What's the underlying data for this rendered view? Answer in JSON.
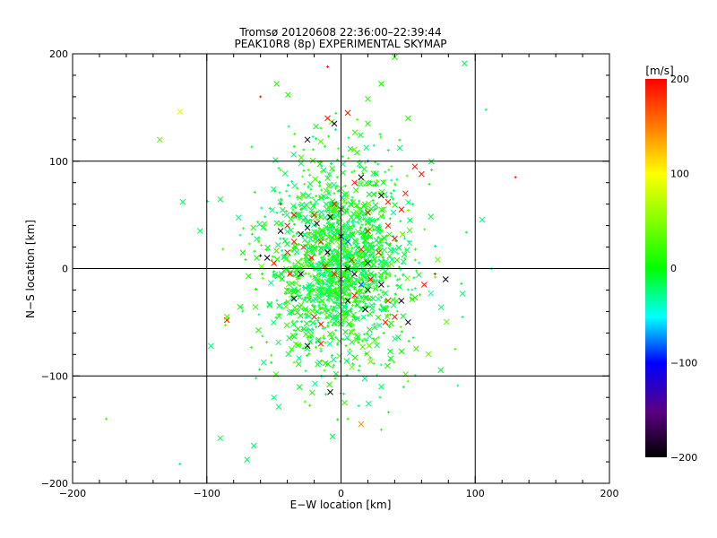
{
  "chart_data": {
    "type": "scatter",
    "title": "Tromsø 20120608 22:36:00–22:39:44",
    "subtitle": "PEAK10R8 (8p) EXPERIMENTAL SKYMAP",
    "xlabel": "E−W location [km]",
    "ylabel": "N−S location [km]",
    "xlim": [
      -200,
      200
    ],
    "ylim": [
      -200,
      200
    ],
    "xticks": [
      "−200",
      "−100",
      "0",
      "100",
      "200"
    ],
    "yticks": [
      "−200",
      "−100",
      "0",
      "100",
      "200"
    ],
    "grid": true,
    "colorbar": {
      "label": "[m/s]",
      "range": [
        -200,
        200
      ],
      "ticks": [
        "200",
        "100",
        "0",
        "−100",
        "−200"
      ]
    },
    "points": [
      {
        "x": -120,
        "y": 146,
        "v": 90,
        "m": "x"
      },
      {
        "x": -135,
        "y": 120,
        "v": 35,
        "m": "x"
      },
      {
        "x": 130,
        "y": 85,
        "v": 190,
        "m": "+"
      },
      {
        "x": 92,
        "y": 191,
        "v": -20,
        "m": "x"
      },
      {
        "x": 40,
        "y": 197,
        "v": 10,
        "m": "x"
      },
      {
        "x": -10,
        "y": 188,
        "v": 190,
        "m": "+"
      },
      {
        "x": -48,
        "y": 172,
        "v": 10,
        "m": "x"
      },
      {
        "x": -60,
        "y": 160,
        "v": 190,
        "m": "+"
      },
      {
        "x": 20,
        "y": 158,
        "v": 10,
        "m": "x"
      },
      {
        "x": 30,
        "y": 172,
        "v": 10,
        "m": "x"
      },
      {
        "x": -10,
        "y": 140,
        "v": 190,
        "m": "x"
      },
      {
        "x": -5,
        "y": 135,
        "v": -190,
        "m": "x"
      },
      {
        "x": 5,
        "y": 145,
        "v": 190,
        "m": "x"
      },
      {
        "x": 20,
        "y": 135,
        "v": 10,
        "m": "x"
      },
      {
        "x": -25,
        "y": 120,
        "v": -190,
        "m": "x"
      },
      {
        "x": 50,
        "y": 140,
        "v": 10,
        "m": "x"
      },
      {
        "x": 55,
        "y": 95,
        "v": 190,
        "m": "x"
      },
      {
        "x": 60,
        "y": 88,
        "v": 190,
        "m": "x"
      },
      {
        "x": 15,
        "y": 85,
        "v": -190,
        "m": "x"
      },
      {
        "x": 30,
        "y": 68,
        "v": -190,
        "m": "x"
      },
      {
        "x": 35,
        "y": 62,
        "v": 190,
        "m": "x"
      },
      {
        "x": 20,
        "y": 52,
        "v": 190,
        "m": "x"
      },
      {
        "x": 0,
        "y": 55,
        "v": 190,
        "m": "x"
      },
      {
        "x": -20,
        "y": 50,
        "v": 190,
        "m": "x"
      },
      {
        "x": -35,
        "y": 50,
        "v": 190,
        "m": "x"
      },
      {
        "x": -40,
        "y": 40,
        "v": 190,
        "m": "x"
      },
      {
        "x": -25,
        "y": 38,
        "v": -190,
        "m": "x"
      },
      {
        "x": -18,
        "y": 42,
        "v": -190,
        "m": "x"
      },
      {
        "x": -30,
        "y": 32,
        "v": -190,
        "m": "x"
      },
      {
        "x": -45,
        "y": 35,
        "v": -190,
        "m": "x"
      },
      {
        "x": -35,
        "y": 25,
        "v": 190,
        "m": "x"
      },
      {
        "x": -28,
        "y": 20,
        "v": 190,
        "m": "x"
      },
      {
        "x": -15,
        "y": 25,
        "v": 190,
        "m": "x"
      },
      {
        "x": -10,
        "y": 15,
        "v": -190,
        "m": "x"
      },
      {
        "x": -22,
        "y": 10,
        "v": 190,
        "m": "x"
      },
      {
        "x": -40,
        "y": 15,
        "v": 190,
        "m": "x"
      },
      {
        "x": -50,
        "y": 5,
        "v": 190,
        "m": "x"
      },
      {
        "x": -55,
        "y": 10,
        "v": -190,
        "m": "x"
      },
      {
        "x": -38,
        "y": -5,
        "v": 190,
        "m": "x"
      },
      {
        "x": -12,
        "y": 2,
        "v": 190,
        "m": "x"
      },
      {
        "x": -5,
        "y": -5,
        "v": 190,
        "m": "x"
      },
      {
        "x": 5,
        "y": 0,
        "v": -190,
        "m": "x"
      },
      {
        "x": 8,
        "y": 8,
        "v": 190,
        "m": "x"
      },
      {
        "x": 15,
        "y": 18,
        "v": 190,
        "m": "x"
      },
      {
        "x": 28,
        "y": 15,
        "v": 190,
        "m": "x"
      },
      {
        "x": 20,
        "y": 35,
        "v": 190,
        "m": "x"
      },
      {
        "x": 35,
        "y": 40,
        "v": 190,
        "m": "x"
      },
      {
        "x": 40,
        "y": 28,
        "v": 190,
        "m": "x"
      },
      {
        "x": 22,
        "y": -10,
        "v": 190,
        "m": "x"
      },
      {
        "x": 30,
        "y": -15,
        "v": -190,
        "m": "x"
      },
      {
        "x": 20,
        "y": -20,
        "v": -190,
        "m": "x"
      },
      {
        "x": 10,
        "y": -25,
        "v": 190,
        "m": "x"
      },
      {
        "x": 35,
        "y": -30,
        "v": 190,
        "m": "x"
      },
      {
        "x": 45,
        "y": -30,
        "v": -190,
        "m": "x"
      },
      {
        "x": 40,
        "y": -45,
        "v": 190,
        "m": "x"
      },
      {
        "x": 33,
        "y": -50,
        "v": 190,
        "m": "x"
      },
      {
        "x": 50,
        "y": -50,
        "v": -190,
        "m": "x"
      },
      {
        "x": 62,
        "y": -15,
        "v": 190,
        "m": "x"
      },
      {
        "x": 78,
        "y": -10,
        "v": -190,
        "m": "x"
      },
      {
        "x": 70,
        "y": -5,
        "v": 190,
        "m": "+"
      },
      {
        "x": 18,
        "y": -38,
        "v": -190,
        "m": "x"
      },
      {
        "x": 5,
        "y": -30,
        "v": -190,
        "m": "x"
      },
      {
        "x": -25,
        "y": -72,
        "v": -190,
        "m": "x"
      },
      {
        "x": -15,
        "y": -70,
        "v": 190,
        "m": "x"
      },
      {
        "x": -8,
        "y": -115,
        "v": -190,
        "m": "x"
      },
      {
        "x": 15,
        "y": -145,
        "v": 140,
        "m": "x"
      },
      {
        "x": -85,
        "y": -48,
        "v": 190,
        "m": "x"
      },
      {
        "x": -30,
        "y": -5,
        "v": -190,
        "m": "x"
      },
      {
        "x": -35,
        "y": -28,
        "v": -190,
        "m": "x"
      },
      {
        "x": -20,
        "y": -45,
        "v": 190,
        "m": "x"
      },
      {
        "x": -15,
        "y": -52,
        "v": 190,
        "m": "x"
      },
      {
        "x": 0,
        "y": 30,
        "v": -190,
        "m": "x"
      },
      {
        "x": 5,
        "y": 25,
        "v": -80,
        "m": "x"
      },
      {
        "x": 15,
        "y": -15,
        "v": -80,
        "m": "x"
      },
      {
        "x": 20,
        "y": 100,
        "v": -80,
        "m": "+"
      },
      {
        "x": 10,
        "y": 80,
        "v": 190,
        "m": "x"
      },
      {
        "x": -5,
        "y": 60,
        "v": 190,
        "m": "x"
      },
      {
        "x": -8,
        "y": 48,
        "v": -190,
        "m": "x"
      },
      {
        "x": -45,
        "y": 60,
        "v": 190,
        "m": "+"
      },
      {
        "x": 48,
        "y": 70,
        "v": 190,
        "m": "x"
      },
      {
        "x": 45,
        "y": 55,
        "v": 190,
        "m": "x"
      },
      {
        "x": 20,
        "y": 5,
        "v": -190,
        "m": "x"
      },
      {
        "x": 0,
        "y": -10,
        "v": 190,
        "m": "x"
      },
      {
        "x": 10,
        "y": -5,
        "v": -190,
        "m": "x"
      },
      {
        "x": -60,
        "y": 12,
        "v": -190,
        "m": "+"
      },
      {
        "x": -90,
        "y": -158,
        "v": -20,
        "m": "x"
      },
      {
        "x": -65,
        "y": -165,
        "v": -20,
        "m": "x"
      },
      {
        "x": -70,
        "y": -178,
        "v": -20,
        "m": "x"
      },
      {
        "x": -175,
        "y": -140,
        "v": 20,
        "m": "+"
      },
      {
        "x": -120,
        "y": -182,
        "v": -20,
        "m": "+"
      },
      {
        "x": -50,
        "y": -120,
        "v": -20,
        "m": "x"
      },
      {
        "x": 30,
        "y": -110,
        "v": -20,
        "m": "x"
      },
      {
        "x": 85,
        "y": -75,
        "v": 20,
        "m": "+"
      },
      {
        "x": 112,
        "y": 0,
        "v": -20,
        "m": "+"
      },
      {
        "x": 108,
        "y": 148,
        "v": -20,
        "m": "+"
      },
      {
        "x": -118,
        "y": 62,
        "v": -20,
        "m": "x"
      },
      {
        "x": -105,
        "y": 35,
        "v": -20,
        "m": "x"
      },
      {
        "x": -85,
        "y": -45,
        "v": 20,
        "m": "x"
      },
      {
        "x": 30,
        "y": -150,
        "v": 20,
        "m": "+"
      },
      {
        "x": 5,
        "y": -140,
        "v": 20,
        "m": "+"
      }
    ]
  }
}
